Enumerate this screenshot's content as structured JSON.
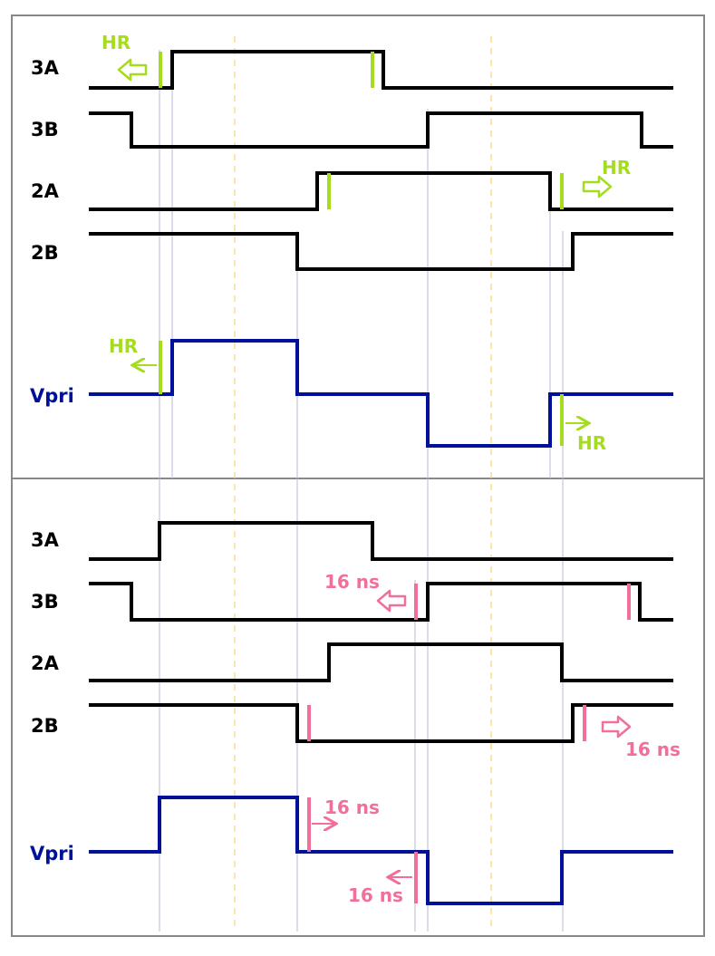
{
  "colors": {
    "signal": "#000000",
    "vpri": "#001199",
    "hr_green": "#a6dc1e",
    "delay_pink": "#f0709a",
    "guide": "#b9b9d6",
    "dash": "#f2cc55",
    "frame": "#888888"
  },
  "top_panel": {
    "labels": {
      "a3": "3A",
      "b3": "3B",
      "a2": "2A",
      "b2": "2B",
      "vpri": "Vpri"
    },
    "annotations": {
      "hr_3a": "HR",
      "hr_2a": "HR",
      "hr_vpri_left": "HR",
      "hr_vpri_right": "HR"
    }
  },
  "bottom_panel": {
    "labels": {
      "a3": "3A",
      "b3": "3B",
      "a2": "2A",
      "b2": "2B",
      "vpri": "Vpri"
    },
    "annotations": {
      "d_3b": "16 ns",
      "d_2b": "16 ns",
      "d_vpri_top": "16 ns",
      "d_vpri_bottom": "16 ns"
    }
  }
}
